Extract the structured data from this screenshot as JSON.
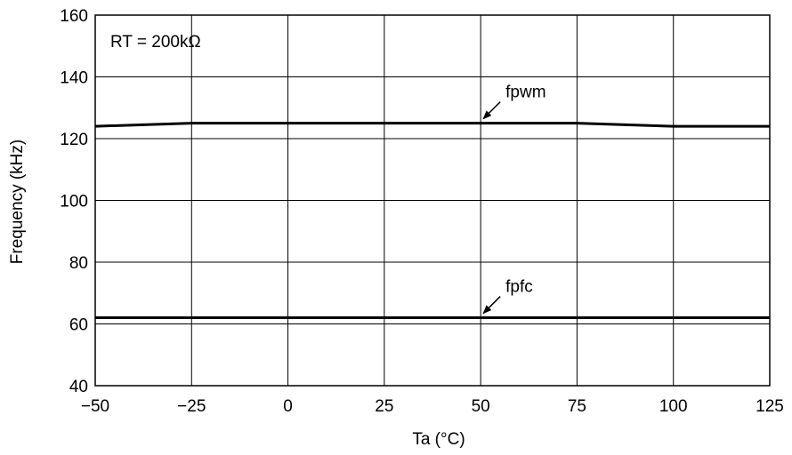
{
  "chart_data": {
    "type": "line",
    "xlabel": "Ta  (°C)",
    "ylabel": "Frequency  (kHz)",
    "xlim": [
      -50,
      125
    ],
    "ylim": [
      40,
      160
    ],
    "x_ticks": [
      -50,
      -25,
      0,
      25,
      50,
      75,
      100,
      125
    ],
    "y_ticks": [
      40,
      60,
      80,
      100,
      120,
      140,
      160
    ],
    "x_tick_labels": [
      "−50",
      "−25",
      "0",
      "25",
      "50",
      "75",
      "100",
      "125"
    ],
    "y_tick_labels": [
      "40",
      "60",
      "80",
      "100",
      "120",
      "140",
      "160"
    ],
    "grid": true,
    "legend": "none",
    "condition": "RT = 200kΩ",
    "series": [
      {
        "name": "fpwm",
        "x": [
          -50,
          -25,
          0,
          25,
          50,
          75,
          100,
          125
        ],
        "y": [
          124,
          125,
          125,
          125,
          125,
          125,
          124,
          124
        ]
      },
      {
        "name": "fpfc",
        "x": [
          -50,
          -25,
          0,
          25,
          50,
          75,
          100,
          125
        ],
        "y": [
          62,
          62,
          62,
          62,
          62,
          62,
          62,
          62
        ]
      }
    ],
    "annotations": [
      {
        "text": "fpwm",
        "series": "fpwm",
        "at_x": 50
      },
      {
        "text": "fpfc",
        "series": "fpfc",
        "at_x": 50
      }
    ],
    "colors": {
      "line": "#000000",
      "grid": "#000000",
      "background": "#ffffff"
    }
  }
}
